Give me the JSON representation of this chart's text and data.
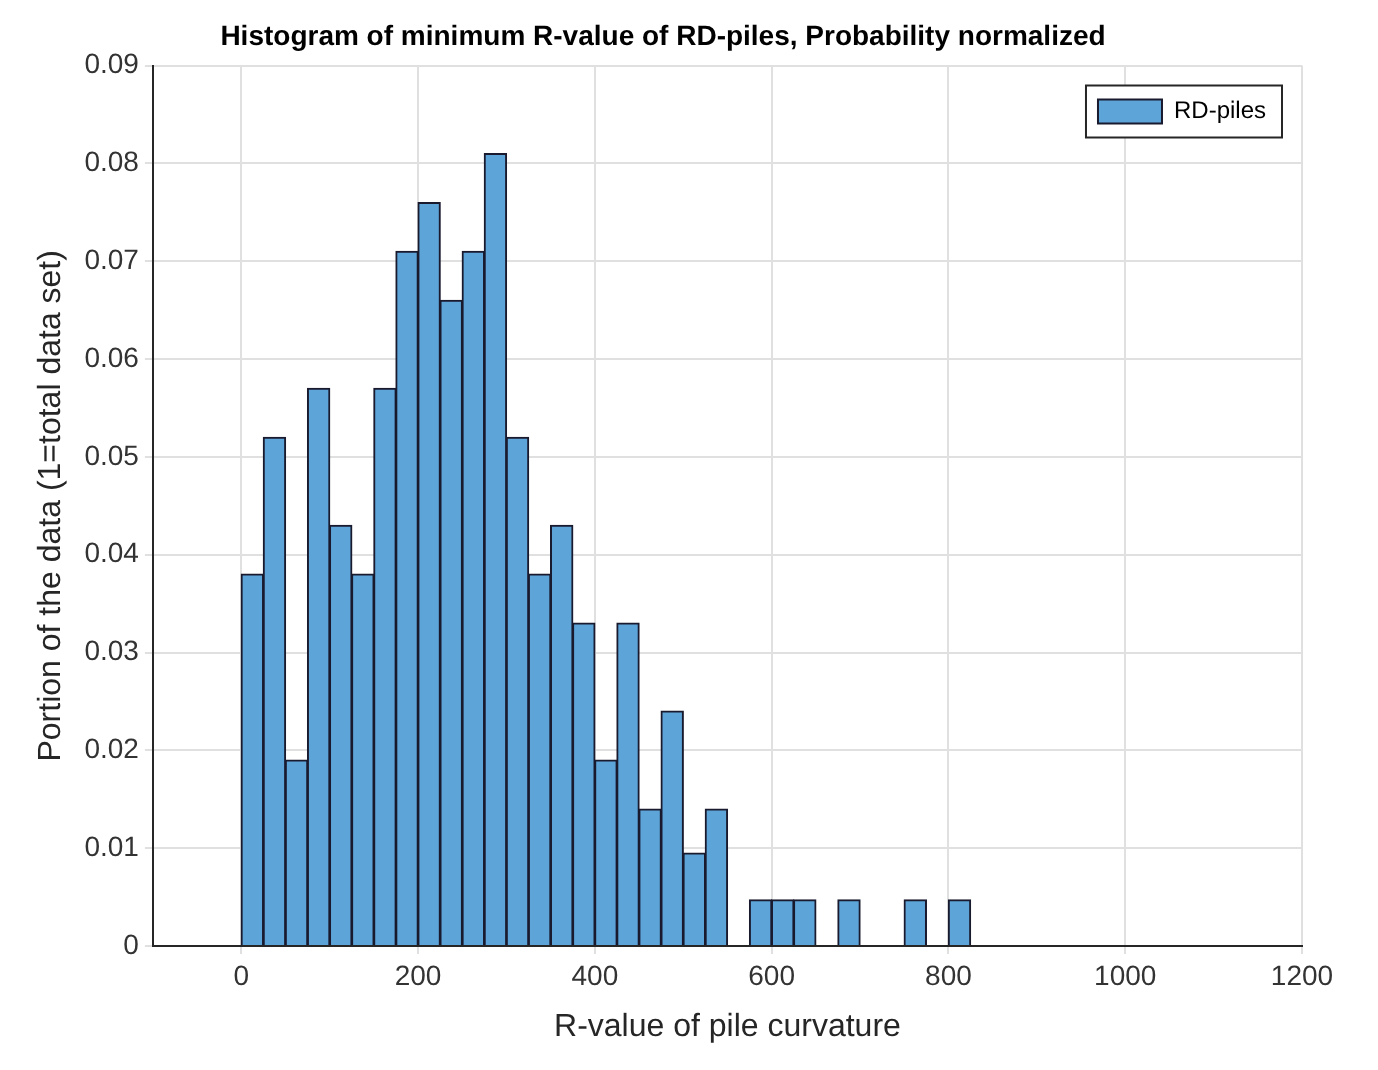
{
  "chart_data": {
    "type": "histogram",
    "title": "Histogram of minimum R-value of RD-piles, Probability normalized",
    "xlabel": "R-value of pile curvature",
    "ylabel": "Portion of the data (1=total data set)",
    "bins": [
      0,
      25,
      50,
      75,
      100,
      125,
      150,
      175,
      200,
      225,
      250,
      275,
      300,
      325,
      350,
      375,
      400,
      425,
      450,
      475,
      500,
      525,
      550,
      575,
      600,
      625,
      650,
      675,
      700,
      725,
      750,
      775,
      800,
      825
    ],
    "series": [
      {
        "name": "RD-piles",
        "color": "#5da5d9",
        "values": [
          0.038,
          0.052,
          0.019,
          0.057,
          0.043,
          0.038,
          0.057,
          0.071,
          0.076,
          0.066,
          0.071,
          0.081,
          0.052,
          0.038,
          0.043,
          0.033,
          0.019,
          0.033,
          0.014,
          0.024,
          0.0095,
          0.014,
          0,
          0.0047,
          0.0047,
          0.0047,
          0,
          0.0047,
          0,
          0,
          0.0047,
          0,
          0.0047
        ]
      }
    ],
    "xlim": [
      -100,
      1200
    ],
    "xticks": [
      0,
      200,
      400,
      600,
      800,
      1000,
      1200
    ],
    "ylim": [
      0,
      0.09
    ],
    "yticks": [
      0,
      0.01,
      0.02,
      0.03,
      0.04,
      0.05,
      0.06,
      0.07,
      0.08,
      0.09
    ],
    "grid": true,
    "legend": "top right"
  }
}
